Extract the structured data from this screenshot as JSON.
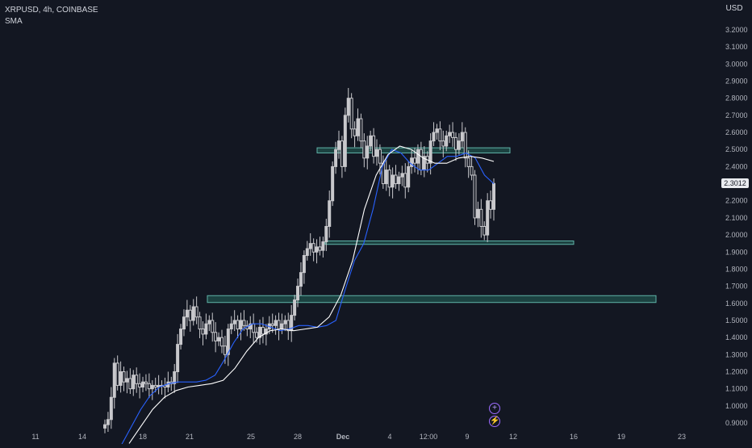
{
  "legend": {
    "symbol_line": "XRPUSD, 4h, COINBASE",
    "indicator": "SMA"
  },
  "currency": "USD",
  "last_price": "2.3012",
  "icons": {
    "add": "plus-circle-icon",
    "flash": "lightning-icon"
  },
  "colors": {
    "background": "#131722",
    "candle": "#c8c8cc",
    "sma_fast": "#2962ff",
    "sma_slow": "#ffffff",
    "zone_fill": "#1f4a47",
    "zone_border": "#5fb3a8",
    "axis_text": "#b2b5be"
  },
  "chart_data": {
    "type": "candlestick",
    "title": "XRPUSD, 4h, COINBASE",
    "grid": false,
    "y_axis": {
      "position": "right",
      "ylim": [
        0.87,
        3.32
      ],
      "ticks": [
        "3.2000",
        "3.1000",
        "3.0000",
        "2.9000",
        "2.8000",
        "2.7000",
        "2.6000",
        "2.5000",
        "2.4000",
        "2.3000",
        "2.2000",
        "2.1000",
        "2.0000",
        "1.9000",
        "1.8000",
        "1.7000",
        "1.6000",
        "1.5000",
        "1.4000",
        "1.3000",
        "1.2000",
        "1.1000",
        "1.0000",
        "0.9000"
      ]
    },
    "x_axis": {
      "ticks": [
        "11",
        "14",
        "18",
        "21",
        "25",
        "28",
        "Dec",
        "4",
        "12:00",
        "9",
        "12",
        "16",
        "19",
        "23"
      ]
    },
    "candles_close": [
      0.89,
      0.92,
      1.05,
      1.25,
      1.12,
      1.2,
      1.14,
      1.16,
      1.1,
      1.18,
      1.13,
      1.11,
      1.14,
      1.13,
      1.1,
      1.12,
      1.11,
      1.12,
      1.12,
      1.11,
      1.14,
      1.13,
      1.2,
      1.36,
      1.45,
      1.52,
      1.56,
      1.5,
      1.58,
      1.52,
      1.45,
      1.42,
      1.48,
      1.5,
      1.43,
      1.38,
      1.4,
      1.35,
      1.3,
      1.45,
      1.48,
      1.5,
      1.45,
      1.5,
      1.47,
      1.45,
      1.48,
      1.43,
      1.4,
      1.46,
      1.42,
      1.45,
      1.48,
      1.47,
      1.5,
      1.45,
      1.48,
      1.5,
      1.44,
      1.53,
      1.62,
      1.7,
      1.78,
      1.88,
      1.92,
      1.95,
      1.9,
      1.93,
      1.91,
      1.96,
      2.05,
      2.2,
      2.4,
      2.5,
      2.55,
      2.4,
      2.7,
      2.8,
      2.62,
      2.58,
      2.68,
      2.55,
      2.45,
      2.52,
      2.58,
      2.46,
      2.5,
      2.42,
      2.3,
      2.38,
      2.28,
      2.35,
      2.3,
      2.34,
      2.36,
      2.28,
      2.4,
      2.45,
      2.42,
      2.5,
      2.38,
      2.46,
      2.42,
      2.55,
      2.6,
      2.62,
      2.55,
      2.52,
      2.58,
      2.6,
      2.57,
      2.5,
      2.55,
      2.6,
      2.45,
      2.4,
      2.35,
      2.1,
      2.15,
      2.05,
      2.0,
      2.2,
      2.15,
      2.3012
    ],
    "sma_fast": [
      0.7,
      0.78,
      0.88,
      0.98,
      1.06,
      1.11,
      1.13,
      1.14,
      1.14,
      1.14,
      1.15,
      1.18,
      1.27,
      1.37,
      1.45,
      1.48,
      1.48,
      1.46,
      1.44,
      1.45,
      1.47,
      1.47,
      1.46,
      1.47,
      1.5,
      1.68,
      1.85,
      1.95,
      2.15,
      2.4,
      2.5,
      2.48,
      2.42,
      2.38,
      2.38,
      2.42,
      2.46,
      2.46,
      2.48,
      2.45,
      2.35,
      2.3
    ],
    "sma_slow": [
      0.78,
      0.88,
      0.98,
      1.05,
      1.09,
      1.11,
      1.12,
      1.13,
      1.15,
      1.22,
      1.32,
      1.4,
      1.44,
      1.45,
      1.44,
      1.45,
      1.46,
      1.52,
      1.65,
      1.85,
      2.15,
      2.35,
      2.47,
      2.52,
      2.5,
      2.45,
      2.42,
      2.42,
      2.45,
      2.46,
      2.45,
      2.43
    ],
    "zones": [
      {
        "low": 2.48,
        "high": 2.51
      },
      {
        "low": 1.945,
        "high": 1.965
      },
      {
        "low": 1.605,
        "high": 1.645
      }
    ]
  }
}
